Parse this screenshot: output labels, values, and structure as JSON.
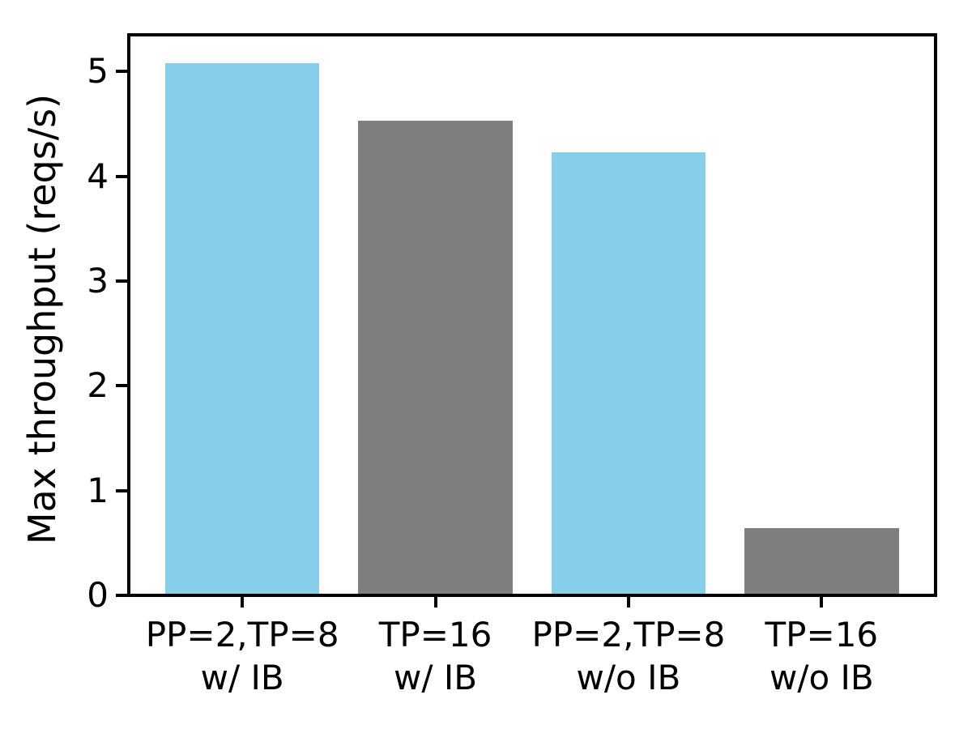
{
  "chart_data": {
    "type": "bar",
    "title": "",
    "xlabel": "",
    "ylabel": "Max throughput (reqs/s)",
    "categories": [
      "PP=2,TP=8\nw/ IB",
      "TP=16\nw/ IB",
      "PP=2,TP=8\nw/o IB",
      "TP=16\nw/o IB"
    ],
    "values": [
      5.08,
      4.53,
      4.23,
      0.64
    ],
    "bar_colors": [
      "#87ceeb",
      "#7f7f7f",
      "#87ceeb",
      "#7f7f7f"
    ],
    "yticks": [
      0,
      1,
      2,
      3,
      4,
      5
    ],
    "ylim": [
      0,
      5.35
    ],
    "xlim": [
      -0.59,
      3.59
    ],
    "bar_width_units": 0.8,
    "grid": false,
    "legend": "none",
    "axis_color": "#000000",
    "background_color": "#ffffff"
  }
}
